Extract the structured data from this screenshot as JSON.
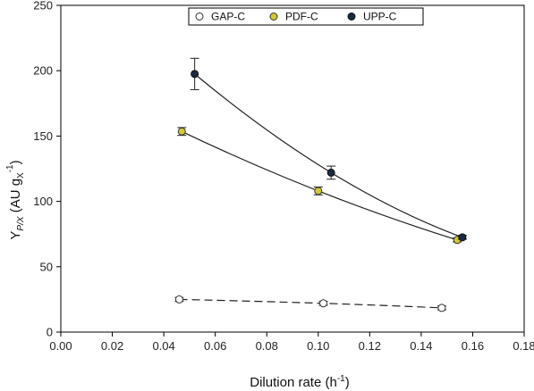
{
  "chart_data": {
    "type": "scatter",
    "xlabel": "Dilution rate (h",
    "xlabel_sup": "-1",
    "xlabel_close": ")",
    "ylabel_main": "Y",
    "ylabel_sub": "P/X",
    "ylabel_units_open": " (AU g",
    "ylabel_units_sub": "X",
    "ylabel_units_sup": "-1",
    "ylabel_units_close": ")",
    "xlim": [
      0.0,
      0.18
    ],
    "ylim": [
      0,
      250
    ],
    "xticks": [
      "0.00",
      "0.02",
      "0.04",
      "0.06",
      "0.08",
      "0.10",
      "0.12",
      "0.14",
      "0.16",
      "0.18"
    ],
    "yticks": [
      "0",
      "50",
      "100",
      "150",
      "200",
      "250"
    ],
    "grid": false,
    "legend_position": "top",
    "series": [
      {
        "name": "GAP-C",
        "marker": "open-circle",
        "color": "#ffffff",
        "edge_color": "#333333",
        "line_style": "dashed",
        "points": [
          {
            "x": 0.046,
            "y": 25,
            "err": 1.5
          },
          {
            "x": 0.102,
            "y": 22,
            "err": 1.5
          },
          {
            "x": 0.148,
            "y": 18.5,
            "err": 1.5
          }
        ]
      },
      {
        "name": "PDF-C",
        "marker": "filled-circle",
        "color": "#d4c832",
        "edge_color": "#333333",
        "line_style": "solid",
        "points": [
          {
            "x": 0.047,
            "y": 153.5,
            "err": 3
          },
          {
            "x": 0.1,
            "y": 108,
            "err": 3
          },
          {
            "x": 0.154,
            "y": 70.5,
            "err": 1.5
          }
        ]
      },
      {
        "name": "UPP-C",
        "marker": "filled-circle",
        "color": "#1a2a42",
        "edge_color": "#111111",
        "line_style": "solid",
        "points": [
          {
            "x": 0.052,
            "y": 197.5,
            "err": 12
          },
          {
            "x": 0.105,
            "y": 122,
            "err": 5
          },
          {
            "x": 0.156,
            "y": 72.5,
            "err": 1.5
          }
        ]
      }
    ]
  }
}
